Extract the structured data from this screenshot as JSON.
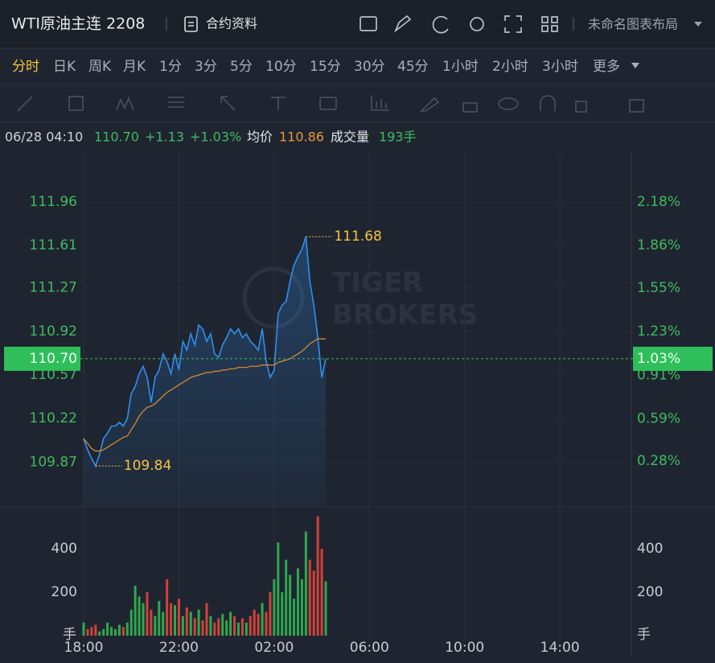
{
  "header": {
    "title": "WTI原油主连 2208",
    "info": "合约资料",
    "layout": "未命名图表布局"
  },
  "periods": {
    "items": [
      "分时",
      "日K",
      "周K",
      "月K",
      "1分",
      "3分",
      "5分",
      "10分",
      "15分",
      "30分",
      "45分",
      "1小时",
      "2小时",
      "3小时",
      "更多"
    ],
    "active": 0
  },
  "quote": {
    "time": "06/28 04:10",
    "price": "110.70",
    "change": "+1.13",
    "pct": "+1.03%",
    "avg_label": "均价",
    "avg": "110.86",
    "vol_label": "成交量",
    "vol": "193手"
  },
  "watermark": [
    "TIGER",
    "BROKERS"
  ],
  "chart_data": [
    {
      "type": "line",
      "x": [
        0,
        10,
        20,
        30,
        40,
        50,
        60,
        70,
        80,
        90,
        100,
        110,
        120,
        130,
        140,
        150,
        160,
        170,
        180,
        190,
        200,
        210,
        220,
        230,
        240,
        250,
        260,
        270,
        280,
        290,
        300,
        310,
        320,
        330,
        340,
        350,
        360,
        370,
        380,
        390,
        400,
        410,
        420,
        430,
        440,
        450,
        460,
        470,
        480,
        490,
        500,
        510,
        520,
        530,
        540,
        550,
        560,
        570,
        580,
        590,
        600,
        610
      ],
      "series": [
        {
          "name": "price",
          "color": "#2f8ff0",
          "values": [
            110.06,
            109.97,
            109.9,
            109.84,
            109.93,
            110.06,
            110.1,
            110.16,
            110.16,
            110.19,
            110.16,
            110.22,
            110.42,
            110.48,
            110.58,
            110.64,
            110.55,
            110.35,
            110.55,
            110.61,
            110.74,
            110.68,
            110.58,
            110.74,
            110.61,
            110.84,
            110.77,
            110.9,
            110.81,
            110.97,
            110.94,
            110.84,
            110.9,
            110.74,
            110.71,
            110.81,
            110.87,
            110.94,
            110.9,
            110.94,
            110.87,
            110.9,
            110.84,
            110.81,
            110.77,
            110.94,
            110.68,
            110.55,
            110.61,
            111.06,
            111.13,
            111.16,
            111.32,
            111.45,
            111.52,
            111.58,
            111.68,
            111.32,
            111.13,
            110.87,
            110.55,
            110.7
          ]
        },
        {
          "name": "avg",
          "color": "#e0922f",
          "values": [
            110.06,
            110.02,
            109.98,
            109.96,
            109.96,
            109.97,
            109.99,
            110.01,
            110.03,
            110.05,
            110.07,
            110.08,
            110.13,
            110.18,
            110.24,
            110.28,
            110.31,
            110.32,
            110.34,
            110.37,
            110.4,
            110.43,
            110.45,
            110.47,
            110.49,
            110.51,
            110.53,
            110.55,
            110.56,
            110.57,
            110.58,
            110.59,
            110.59,
            110.6,
            110.6,
            110.61,
            110.61,
            110.62,
            110.62,
            110.63,
            110.63,
            110.63,
            110.64,
            110.64,
            110.64,
            110.65,
            110.65,
            110.65,
            110.65,
            110.67,
            110.68,
            110.69,
            110.7,
            110.72,
            110.74,
            110.76,
            110.79,
            110.82,
            110.84,
            110.86,
            110.86,
            110.86
          ]
        }
      ],
      "xlim": [
        0,
        1380
      ],
      "xticks": [
        {
          "value": 0,
          "label": "18:00"
        },
        {
          "value": 240,
          "label": "22:00"
        },
        {
          "value": 480,
          "label": "02:00"
        },
        {
          "value": 720,
          "label": "06:00"
        },
        {
          "value": 960,
          "label": "10:00"
        },
        {
          "value": 1200,
          "label": "14:00"
        }
      ],
      "ylim": [
        109.55,
        112.32
      ],
      "yticks": [
        109.87,
        110.22,
        110.57,
        110.92,
        111.27,
        111.61,
        111.96
      ],
      "y2lim": [
        -0.02,
        2.51
      ],
      "y2ticks": [
        {
          "value": 0.28,
          "label": "0.28%"
        },
        {
          "value": 0.59,
          "label": "0.59%"
        },
        {
          "value": 0.91,
          "label": "0.91%"
        },
        {
          "value": 1.23,
          "label": "1.23%"
        },
        {
          "value": 1.55,
          "label": "1.55%"
        },
        {
          "value": 1.86,
          "label": "1.86%"
        },
        {
          "value": 2.18,
          "label": "2.18%"
        }
      ],
      "grid": true,
      "last_price": {
        "value": 110.7,
        "label": "110.70"
      },
      "last_pct": {
        "value": 1.03,
        "label": "1.03%"
      },
      "annotations": [
        {
          "value": 111.68,
          "x": 560
        },
        {
          "value": 109.84,
          "x": 30
        }
      ]
    },
    {
      "type": "bar",
      "x": [
        0,
        10,
        20,
        30,
        40,
        50,
        60,
        70,
        80,
        90,
        100,
        110,
        120,
        130,
        140,
        150,
        160,
        170,
        180,
        190,
        200,
        210,
        220,
        230,
        240,
        250,
        260,
        270,
        280,
        290,
        300,
        310,
        320,
        330,
        340,
        350,
        360,
        370,
        380,
        390,
        400,
        410,
        420,
        430,
        440,
        450,
        460,
        470,
        480,
        490,
        500,
        510,
        520,
        530,
        540,
        550,
        560,
        570,
        580,
        590,
        600,
        610
      ],
      "values": [
        60,
        30,
        40,
        50,
        20,
        30,
        60,
        40,
        30,
        50,
        40,
        60,
        120,
        230,
        180,
        150,
        200,
        120,
        90,
        160,
        110,
        260,
        150,
        140,
        170,
        90,
        130,
        110,
        80,
        120,
        70,
        150,
        90,
        60,
        80,
        100,
        70,
        110,
        90,
        60,
        80,
        60,
        90,
        120,
        100,
        150,
        110,
        200,
        260,
        430,
        200,
        350,
        280,
        170,
        310,
        260,
        480,
        350,
        300,
        550,
        400,
        250
      ],
      "up_color": "#2fa84f",
      "down_color": "#d1423a",
      "ylim": [
        0,
        575
      ],
      "yticks": [
        200,
        400
      ],
      "unit": "手"
    }
  ]
}
